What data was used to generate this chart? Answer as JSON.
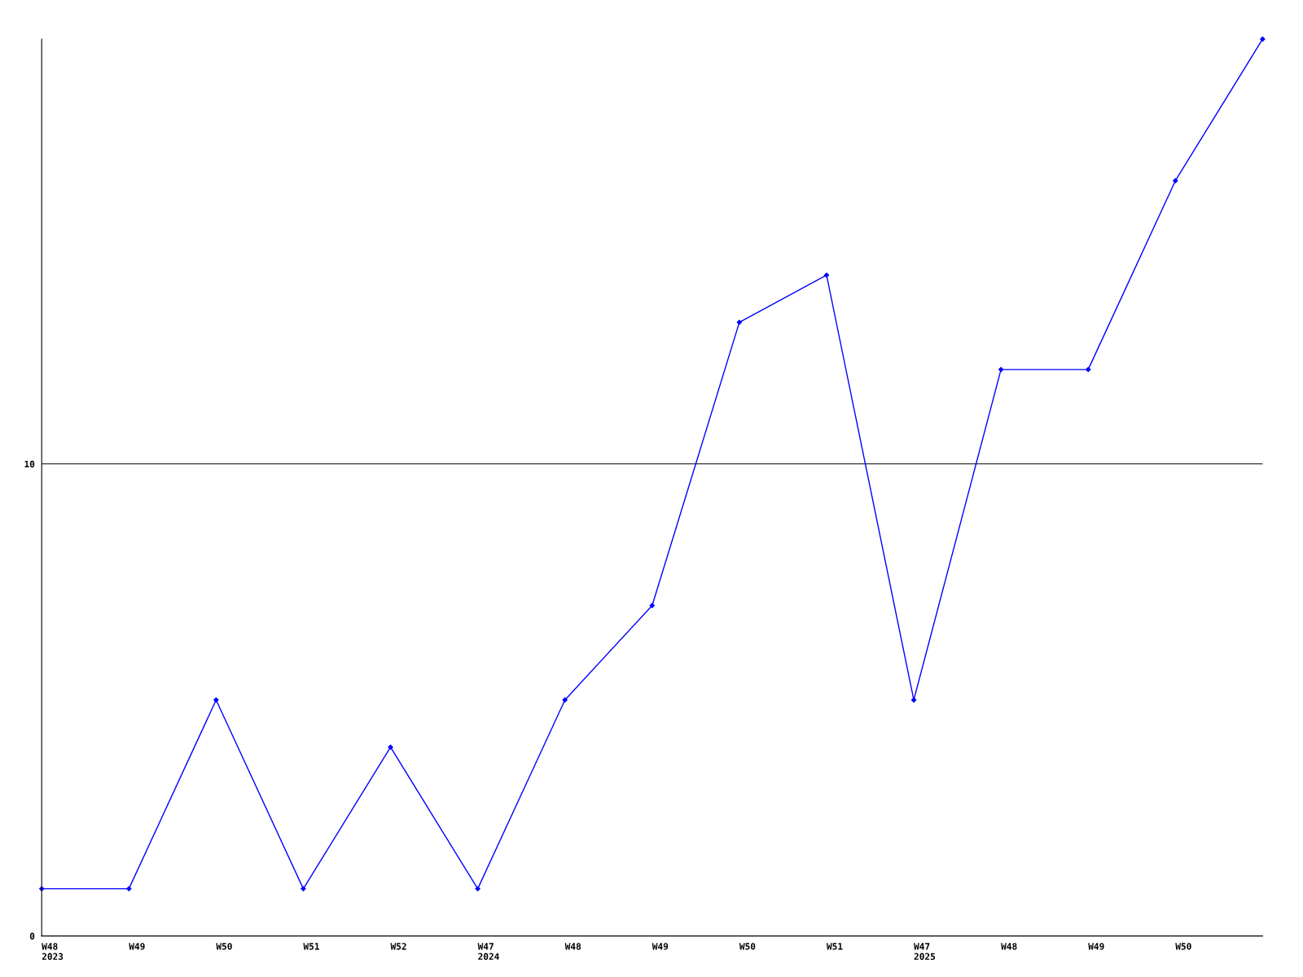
{
  "chart_data": {
    "type": "line",
    "categories": [
      "W48\n2023",
      "W49",
      "W50",
      "W51",
      "W52",
      "W47\n2024",
      "W48",
      "W49",
      "W50",
      "W51",
      "W47\n2025",
      "W48",
      "W49",
      "W50",
      null
    ],
    "series": [
      {
        "color": "#0000ff",
        "values": [
          1,
          1,
          5,
          1,
          4,
          1,
          5,
          7,
          13,
          14,
          5,
          12,
          12,
          16,
          19
        ]
      }
    ],
    "ylim": [
      0,
      19
    ],
    "yticks": [
      0,
      10
    ],
    "grid": "y",
    "marker": "diamond",
    "line_style": "solid",
    "legend": false
  }
}
